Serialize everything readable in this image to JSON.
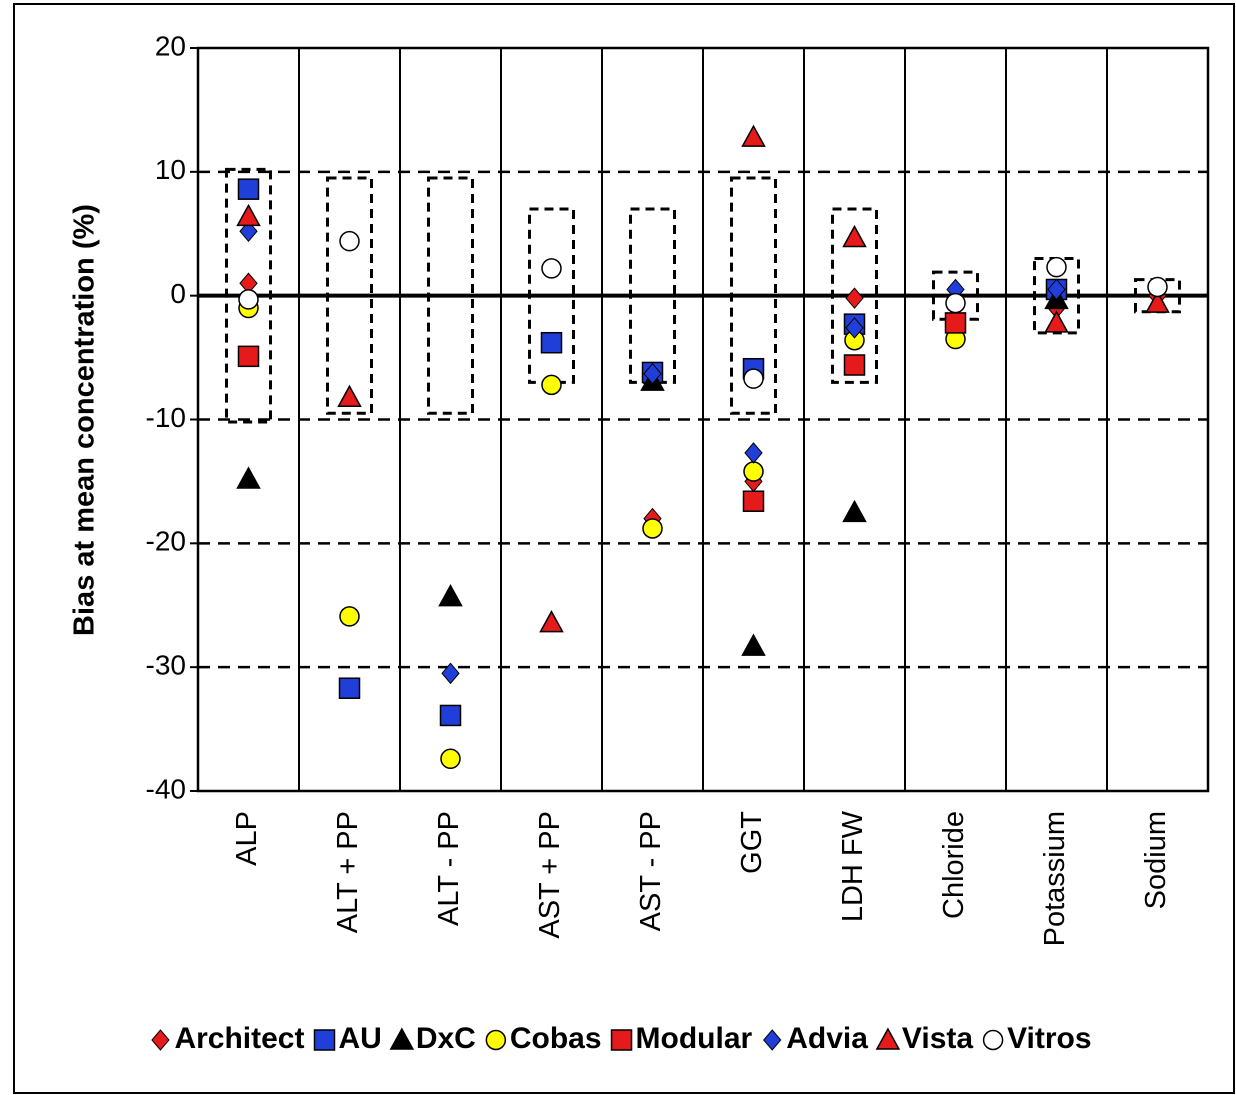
{
  "chart_data": {
    "type": "scatter",
    "y_label": "Bias at mean concentration (%)",
    "categories": [
      "ALP",
      "ALT + PP",
      "ALT - PP",
      "AST + PP",
      "AST - PP",
      "GGT",
      "LDH FW",
      "Chloride",
      "Potassium",
      "Sodium"
    ],
    "limits": [
      10.2,
      9.5,
      9.5,
      7,
      7,
      9.5,
      7,
      1.9,
      3,
      1.3
    ],
    "ylim": [
      -40,
      20
    ],
    "yticks": [
      -40,
      -30,
      -20,
      -10,
      0,
      10,
      20
    ],
    "grid": true,
    "legend": "bottom",
    "series": [
      {
        "name": "Architect",
        "color": "#e51a1a",
        "marker": "diamond",
        "values": [
          1.0,
          null,
          null,
          null,
          -18.0,
          -15.0,
          -0.2,
          null,
          -1.0,
          0.0
        ]
      },
      {
        "name": "AU",
        "color": "#1f3fd8",
        "marker": "square",
        "values": [
          8.6,
          -31.7,
          -33.9,
          -3.8,
          -6.2,
          -5.9,
          -2.3,
          null,
          0.5,
          null
        ]
      },
      {
        "name": "DxC",
        "color": "#000000",
        "marker": "triangle",
        "values": [
          -14.8,
          null,
          -24.3,
          null,
          -6.9,
          -28.3,
          -17.5,
          null,
          -0.3,
          null
        ]
      },
      {
        "name": "Cobas",
        "color": "#ffff00",
        "marker": "circle",
        "values": [
          -1.0,
          -25.9,
          -37.4,
          -7.2,
          -18.8,
          -14.2,
          -3.6,
          -3.5,
          null,
          null
        ]
      },
      {
        "name": "Modular",
        "color": "#e51a1a",
        "marker": "square",
        "values": [
          -4.9,
          null,
          null,
          null,
          null,
          -16.6,
          -5.6,
          -2.2,
          null,
          null
        ]
      },
      {
        "name": "Advia",
        "color": "#1f3fd8",
        "marker": "diamond",
        "values": [
          5.2,
          null,
          -30.5,
          null,
          -6.3,
          -12.7,
          -2.6,
          0.5,
          0.5,
          null
        ]
      },
      {
        "name": "Vista",
        "color": "#e51a1a",
        "marker": "triangle",
        "values": [
          6.4,
          -8.2,
          null,
          -26.4,
          null,
          12.8,
          4.7,
          null,
          -2.2,
          -0.6
        ]
      },
      {
        "name": "Vitros",
        "color": "#ffffff",
        "marker": "circle",
        "values": [
          -0.3,
          4.4,
          null,
          2.2,
          null,
          -6.7,
          null,
          -0.6,
          2.3,
          0.7
        ]
      }
    ]
  }
}
